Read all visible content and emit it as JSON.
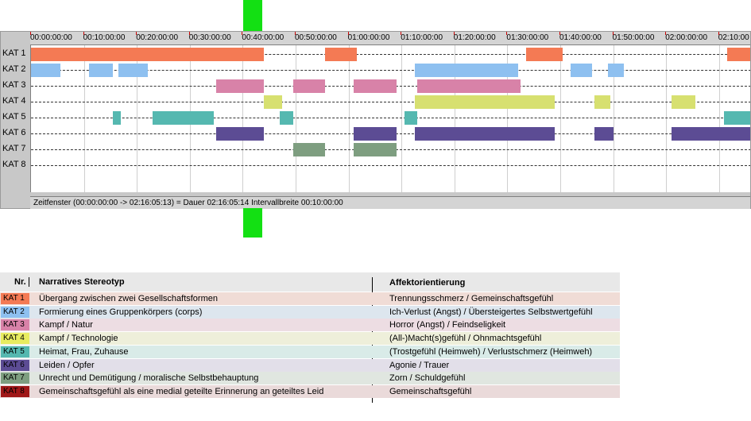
{
  "timeline": {
    "ticks": [
      "00:00:00:00",
      "00:10:00:00",
      "00:20:00:00",
      "00:30:00:00",
      "00:40:00:00",
      "00:50:00:00",
      "01:00:00:00",
      "01:10:00:00",
      "01:20:00:00",
      "01:30:00:00",
      "01:40:00:00",
      "01:50:00:00",
      "02:00:00:00",
      "02:10:00"
    ],
    "tracks": [
      {
        "label": "KAT 1",
        "color": "#f47a54",
        "segments": [
          [
            0,
            44
          ],
          [
            55.5,
            61.5
          ],
          [
            93.5,
            100.5
          ],
          [
            131.5,
            137
          ]
        ]
      },
      {
        "label": "KAT 2",
        "color": "#8ec0f0",
        "segments": [
          [
            0,
            5.5
          ],
          [
            11,
            15.5
          ],
          [
            16.5,
            22
          ],
          [
            72.5,
            92
          ],
          [
            102,
            106
          ],
          [
            109,
            112
          ]
        ]
      },
      {
        "label": "KAT 3",
        "color": "#d882a8",
        "segments": [
          [
            35,
            44
          ],
          [
            49.5,
            55.5
          ],
          [
            61,
            69
          ],
          [
            73,
            92.5
          ]
        ]
      },
      {
        "label": "KAT 4",
        "color": "#d7e070",
        "segments": [
          [
            44,
            47.5
          ],
          [
            72.5,
            99
          ],
          [
            106.5,
            109.5
          ],
          [
            121,
            125.5
          ]
        ]
      },
      {
        "label": "KAT 5",
        "color": "#55b8b0",
        "segments": [
          [
            15.5,
            17
          ],
          [
            23,
            34.5
          ],
          [
            47,
            49.5
          ],
          [
            70.5,
            73
          ],
          [
            131,
            137
          ]
        ]
      },
      {
        "label": "KAT 6",
        "color": "#5c4c94",
        "segments": [
          [
            35,
            44
          ],
          [
            61,
            69
          ],
          [
            72.5,
            99
          ],
          [
            106.5,
            110
          ],
          [
            121,
            136
          ]
        ]
      },
      {
        "label": "KAT 7",
        "color": "#7e9e80",
        "segments": [
          [
            49.5,
            55.5
          ],
          [
            61,
            69
          ]
        ]
      },
      {
        "label": "KAT 8",
        "color": "#a01818",
        "segments": []
      }
    ],
    "status": "Zeitfenster (00:00:00:00 -> 02:16:05:13) = Dauer 02:16:05:14     Intervallbreite 00:10:00:00"
  },
  "legend": {
    "header_nr": "Nr.",
    "header_stereotype": "Narratives Stereotyp",
    "header_affect": "Affektorientierung",
    "rows": [
      {
        "kat": "KAT 1",
        "badge_color": "#f47a54",
        "bg": "#f0dcd6",
        "stereotype": "Übergang zwischen zwei Gesellschaftsformen",
        "affect": "Trennungsschmerz / Gemeinschaftsgefühl"
      },
      {
        "kat": "KAT 2",
        "badge_color": "#8ec0f0",
        "bg": "#dde6ee",
        "stereotype": "Formierung eines Gruppenkörpers (corps)",
        "affect": "Ich-Verlust (Angst) / Übersteigertes Selbstwertgefühl"
      },
      {
        "kat": "KAT 3",
        "badge_color": "#d882a8",
        "bg": "#eddde3",
        "stereotype": "Kampf / Natur",
        "affect": "Horror (Angst) / Feindseligkeit"
      },
      {
        "kat": "KAT 4",
        "badge_color": "#e8ec60",
        "bg": "#eeefda",
        "stereotype": "Kampf / Technologie",
        "affect": "(All-)Macht(s)gefühl / Ohnmachtsgefühl"
      },
      {
        "kat": "KAT 5",
        "badge_color": "#55b8b0",
        "bg": "#d9ebe8",
        "stereotype": "Heimat, Frau, Zuhause",
        "affect": "(Trostgefühl (Heimweh) / Verlustschmerz (Heimweh)"
      },
      {
        "kat": "KAT 6",
        "badge_color": "#5c4c94",
        "bg": "#e2dfe9",
        "stereotype": "Leiden / Opfer",
        "affect": "Agonie / Trauer"
      },
      {
        "kat": "KAT 7",
        "badge_color": "#7e9e80",
        "bg": "#e0e6e0",
        "stereotype": "Unrecht und Demütigung / moralische Selbstbehauptung",
        "affect": "Zorn / Schuldgefühl"
      },
      {
        "kat": "KAT 8",
        "badge_color": "#a01818",
        "bg": "#eadada",
        "stereotype": "Gemeinschaftsgefühl als eine medial geteilte Erinnerung an geteiltes Leid",
        "affect": "Gemeinschaftsgefühl"
      }
    ]
  }
}
